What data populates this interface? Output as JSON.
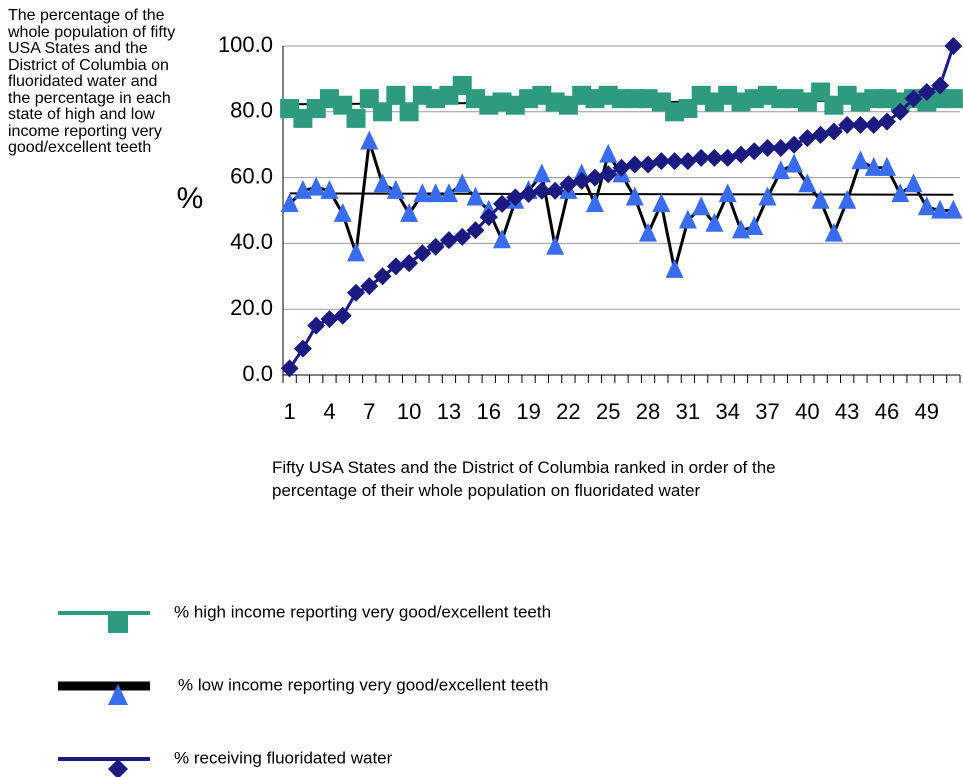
{
  "chart_data": {
    "type": "line",
    "description": "The percentage of the whole population of fifty USA States and the District of Columbia on fluoridated water and the percentage in each state of high and low income reporting very good/excellent teeth",
    "ylabel": "%",
    "xlabel": "Fifty USA States and the District of Columbia ranked in order of the percentage of their whole population on fluoridated water",
    "categories": [
      "1",
      null,
      null,
      "4",
      null,
      null,
      "7",
      null,
      null,
      "10",
      null,
      null,
      "13",
      null,
      null,
      "16",
      null,
      null,
      "19",
      null,
      null,
      "22",
      null,
      null,
      "25",
      null,
      null,
      "28",
      null,
      null,
      "31",
      null,
      null,
      "34",
      null,
      null,
      "37",
      null,
      null,
      "40",
      null,
      null,
      "43",
      null,
      null,
      "46",
      null,
      null,
      "49",
      null,
      null
    ],
    "ylim": [
      0,
      100
    ],
    "yticks": [
      {
        "value": 0,
        "label": "0.0"
      },
      {
        "value": 20,
        "label": "20.0"
      },
      {
        "value": 40,
        "label": "40.0"
      },
      {
        "value": 60,
        "label": "60.0"
      },
      {
        "value": 80,
        "label": "80.0"
      },
      {
        "value": 100,
        "label": "100.0"
      }
    ],
    "grid": true,
    "series": [
      {
        "name": "% high income reporting very good/excellent teeth",
        "color": "#2e9b7f",
        "line_color": "#2e9b7f",
        "marker": "square",
        "values": [
          81,
          78,
          81,
          84,
          82,
          78,
          84,
          80,
          85,
          80,
          85,
          84,
          85,
          88,
          84,
          82,
          83,
          82,
          84,
          85,
          83,
          82,
          85,
          84,
          85,
          84,
          84,
          84,
          83,
          80,
          81,
          85,
          83,
          85,
          83,
          84,
          85,
          84,
          84,
          83,
          86,
          82,
          85,
          83,
          84,
          84,
          83,
          84,
          83,
          84,
          84
        ],
        "trend": [
          82.3,
          83.5
        ]
      },
      {
        "name": "% low income reporting very good/excellent teeth",
        "color": "#3a6cf0",
        "line_color": "#000000",
        "marker": "triangle",
        "values": [
          52,
          56,
          57,
          56,
          49,
          37,
          71,
          58,
          56,
          49,
          55,
          55,
          55,
          58,
          54,
          50,
          41,
          53,
          56,
          61,
          39,
          56,
          61,
          52,
          67,
          61,
          54,
          43,
          52,
          32,
          47,
          51,
          46,
          55,
          44,
          45,
          54,
          62,
          64,
          58,
          53,
          43,
          53,
          65,
          63,
          63,
          55,
          58,
          51,
          50,
          50
        ],
        "trend": [
          55.2,
          54.8
        ]
      },
      {
        "name": "% receiving fluoridated water",
        "color": "#1a1a80",
        "line_color": "#1a1a80",
        "marker": "diamond",
        "values": [
          2,
          8,
          15,
          17,
          18,
          25,
          27,
          30,
          33,
          34,
          37,
          39,
          41,
          42,
          44,
          48,
          52,
          54,
          55,
          56,
          56,
          58,
          59,
          60,
          61,
          63,
          64,
          64,
          65,
          65,
          65,
          66,
          66,
          66,
          67,
          68,
          69,
          69,
          70,
          72,
          73,
          74,
          76,
          76,
          76,
          77,
          80,
          84,
          86,
          88,
          100
        ]
      }
    ]
  }
}
